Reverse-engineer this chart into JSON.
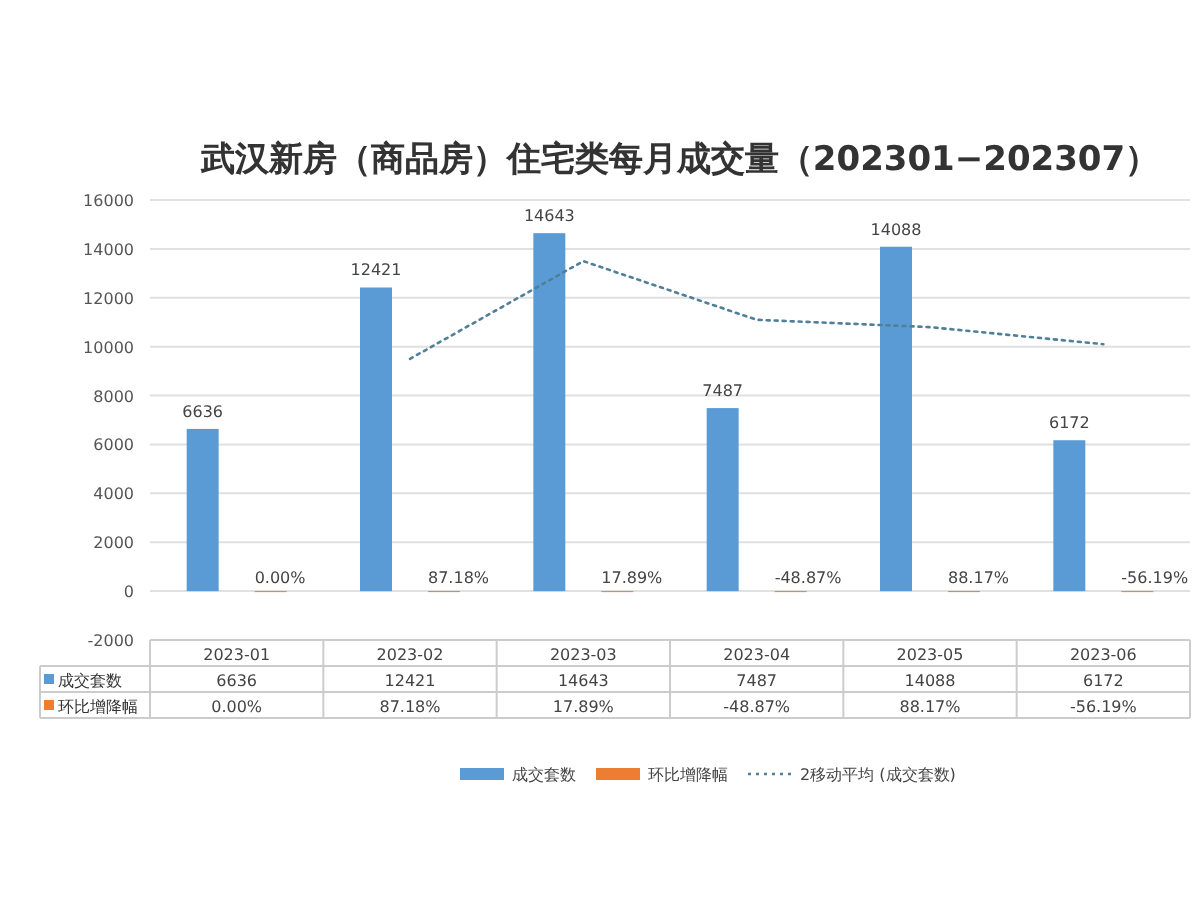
{
  "chart_data": {
    "type": "bar",
    "title": "武汉新房（商品房）住宅类每月成交量（202301−202307）",
    "categories": [
      "2023-01",
      "2023-02",
      "2023-03",
      "2023-04",
      "2023-05",
      "2023-06"
    ],
    "series": [
      {
        "name": "成交套数",
        "color": "#5b9bd5",
        "values": [
          6636,
          12421,
          14643,
          7487,
          14088,
          6172
        ],
        "value_labels": [
          "6636",
          "12421",
          "14643",
          "7487",
          "14088",
          "6172"
        ]
      },
      {
        "name": "环比增降幅",
        "color": "#ed7d31",
        "values": [
          0,
          0.8718,
          0.1789,
          -0.4887,
          0.8817,
          -0.5619
        ],
        "value_labels": [
          "0.00%",
          "87.18%",
          "17.89%",
          "-48.87%",
          "88.17%",
          "-56.19%"
        ]
      },
      {
        "name": "2移动平均 (成交套数)",
        "type": "line",
        "color": "#4f7f99",
        "line_style": "dotted",
        "values": [
          null,
          9500,
          13500,
          11100,
          10800,
          10100
        ]
      }
    ],
    "ylim": [
      -2000,
      16000
    ],
    "yticks": [
      -2000,
      0,
      2000,
      4000,
      6000,
      8000,
      10000,
      12000,
      14000,
      16000
    ],
    "grid": "y",
    "legend": "bottom"
  }
}
